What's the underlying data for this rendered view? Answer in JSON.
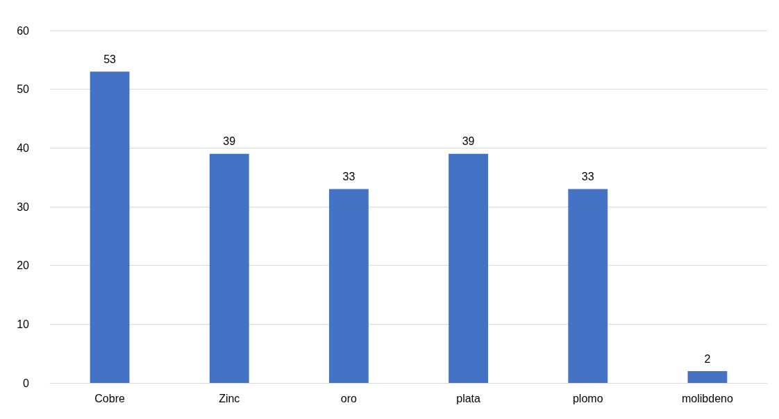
{
  "chart_data": {
    "type": "bar",
    "categories": [
      "Cobre",
      "Zinc",
      "oro",
      "plata",
      "plomo",
      "molibdeno"
    ],
    "values": [
      53,
      39,
      33,
      39,
      33,
      2
    ],
    "color": "#4472c4",
    "ylim": [
      0,
      60
    ],
    "yticks": [
      0,
      10,
      20,
      30,
      40,
      50,
      60
    ],
    "grid": "y",
    "data_labels": true
  }
}
